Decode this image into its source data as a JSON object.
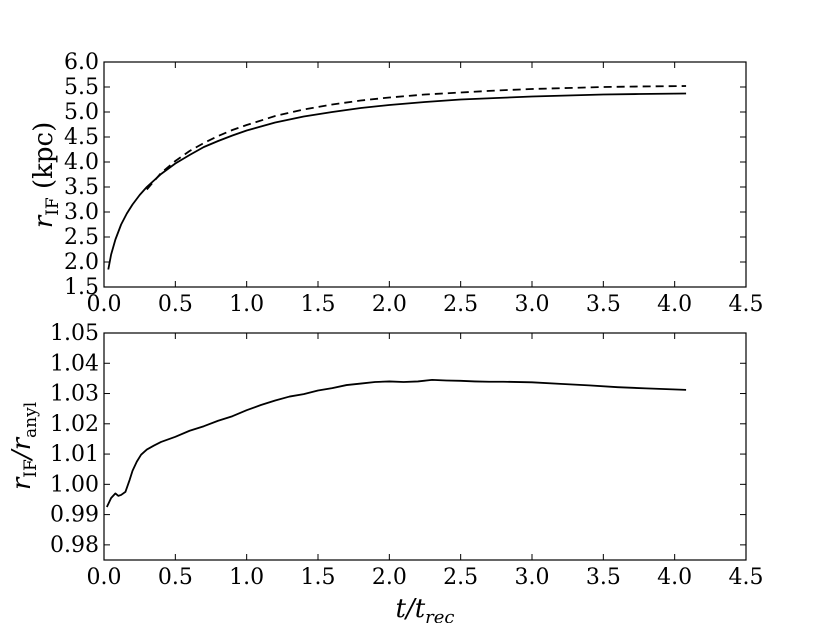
{
  "chart_data": [
    {
      "type": "line",
      "xlim": [
        0.0,
        4.5
      ],
      "ylim": [
        1.5,
        6.0
      ],
      "xticks": [
        "0.0",
        "0.5",
        "1.0",
        "1.5",
        "2.0",
        "2.5",
        "3.0",
        "3.5",
        "4.0",
        "4.5"
      ],
      "yticks": [
        "1.5",
        "2.0",
        "2.5",
        "3.0",
        "3.5",
        "4.0",
        "4.5",
        "5.0",
        "5.5",
        "6.0"
      ],
      "ylabel": {
        "main": "r",
        "sub": "IF",
        "rest": " (kpc)"
      },
      "grid": false,
      "series": [
        {
          "style": "solid",
          "x": [
            0.03,
            0.05,
            0.08,
            0.12,
            0.16,
            0.2,
            0.25,
            0.3,
            0.4,
            0.5,
            0.6,
            0.7,
            0.8,
            0.9,
            1.0,
            1.2,
            1.4,
            1.6,
            1.8,
            2.0,
            2.25,
            2.5,
            2.75,
            3.0,
            3.25,
            3.5,
            3.75,
            4.08
          ],
          "y": [
            1.85,
            2.15,
            2.45,
            2.75,
            2.97,
            3.15,
            3.34,
            3.5,
            3.76,
            3.97,
            4.14,
            4.3,
            4.42,
            4.53,
            4.63,
            4.79,
            4.91,
            5.0,
            5.08,
            5.14,
            5.2,
            5.25,
            5.28,
            5.31,
            5.33,
            5.35,
            5.36,
            5.37
          ]
        },
        {
          "style": "dashed",
          "x": [
            0.3,
            0.4,
            0.5,
            0.6,
            0.7,
            0.8,
            0.9,
            1.0,
            1.2,
            1.4,
            1.6,
            1.8,
            2.0,
            2.25,
            2.5,
            2.75,
            3.0,
            3.25,
            3.5,
            3.75,
            4.08
          ],
          "y": [
            3.45,
            3.78,
            4.02,
            4.22,
            4.38,
            4.52,
            4.64,
            4.74,
            4.92,
            5.05,
            5.15,
            5.23,
            5.29,
            5.35,
            5.39,
            5.43,
            5.46,
            5.48,
            5.5,
            5.51,
            5.52
          ]
        }
      ]
    },
    {
      "type": "line",
      "xlim": [
        0.0,
        4.5
      ],
      "ylim": [
        0.975,
        1.05
      ],
      "xticks": [
        "0.0",
        "0.5",
        "1.0",
        "1.5",
        "2.0",
        "2.5",
        "3.0",
        "3.5",
        "4.0",
        "4.5"
      ],
      "yticks": [
        "0.98",
        "0.99",
        "1.00",
        "1.01",
        "1.02",
        "1.03",
        "1.04",
        "1.05"
      ],
      "ylabel": {
        "main": "r",
        "sub": "IF",
        "mid": "/r",
        "sub2": "anyl"
      },
      "xlabel": {
        "main": "t",
        "mid": "/t",
        "sub": "rec"
      },
      "grid": false,
      "series": [
        {
          "style": "solid",
          "x": [
            0.02,
            0.05,
            0.08,
            0.1,
            0.12,
            0.15,
            0.18,
            0.2,
            0.23,
            0.26,
            0.3,
            0.35,
            0.4,
            0.5,
            0.6,
            0.7,
            0.8,
            0.9,
            1.0,
            1.1,
            1.2,
            1.3,
            1.4,
            1.5,
            1.6,
            1.7,
            1.8,
            1.9,
            2.0,
            2.1,
            2.2,
            2.3,
            2.4,
            2.5,
            2.6,
            2.7,
            2.8,
            3.0,
            3.2,
            3.4,
            3.6,
            3.8,
            4.08
          ],
          "y": [
            0.9925,
            0.9955,
            0.997,
            0.9962,
            0.9965,
            0.9975,
            1.0015,
            1.0045,
            1.0075,
            1.0098,
            1.0115,
            1.0128,
            1.014,
            1.0157,
            1.0177,
            1.0192,
            1.021,
            1.0225,
            1.0245,
            1.0262,
            1.0277,
            1.029,
            1.0298,
            1.031,
            1.0318,
            1.0328,
            1.0333,
            1.0338,
            1.034,
            1.0338,
            1.034,
            1.0345,
            1.0343,
            1.0342,
            1.034,
            1.0339,
            1.0339,
            1.0337,
            1.0332,
            1.0327,
            1.0321,
            1.0317,
            1.0312
          ]
        }
      ]
    }
  ]
}
